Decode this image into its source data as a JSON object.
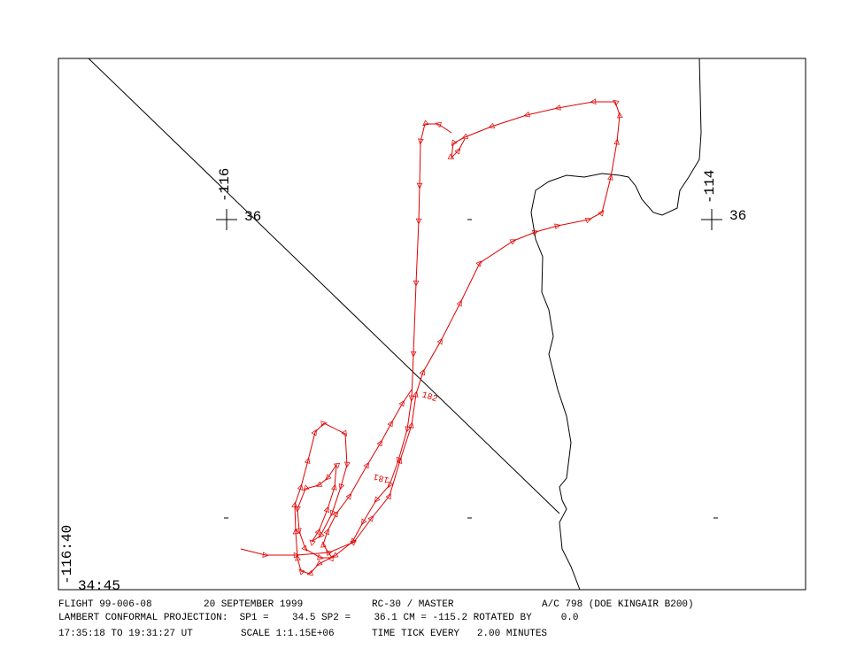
{
  "map": {
    "labels": {
      "lon_left": "-116",
      "lat_left": "36",
      "lon_right": "-114",
      "lat_right": "36",
      "lon_corner": "-116:40",
      "lat_corner": "34:45",
      "marker_182": "182",
      "marker_181": "181"
    },
    "footer": {
      "line1": [
        "FLIGHT 99-006-08",
        "20 SEPTEMBER 1999",
        "RC-30 / MASTER",
        "A/C 798 (DOE KINGAIR B200)"
      ],
      "line2": "LAMBERT CONFORMAL PROJECTION:  SP1 =    34.5 SP2 =    36.1 CM = -115.2 ROTATED BY     0.0",
      "line3": [
        "17:35:18 TO 19:31:27 UT",
        "SCALE 1:1.15E+06",
        "TIME TICK EVERY   2.00 MINUTES"
      ]
    }
  }
}
